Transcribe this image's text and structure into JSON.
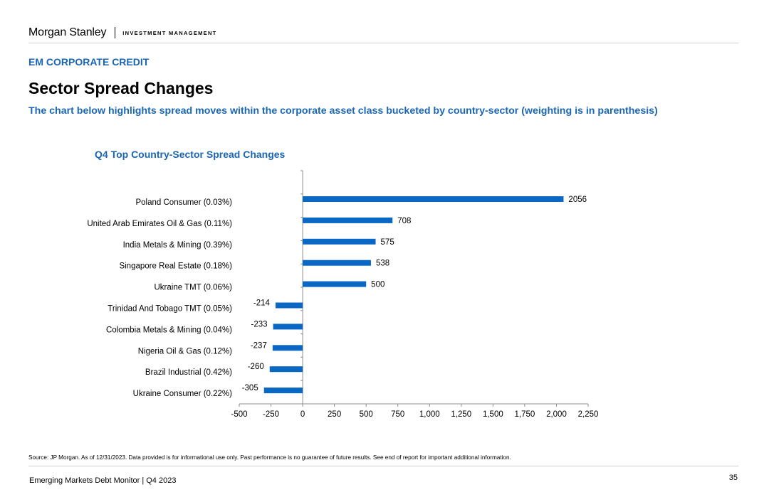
{
  "brand": {
    "logo_text": "Morgan Stanley",
    "division": "INVESTMENT MANAGEMENT"
  },
  "header": {
    "section": "EM CORPORATE CREDIT",
    "title": "Sector Spread Changes",
    "subtitle": "The chart below highlights spread moves within the corporate asset class bucketed by country-sector (weighting is in parenthesis)"
  },
  "chart_data": {
    "type": "bar",
    "orientation": "horizontal",
    "title": "Q4 Top Country-Sector Spread Changes",
    "categories": [
      "Poland Consumer (0.03%)",
      "United Arab Emirates Oil & Gas (0.11%)",
      "India Metals & Mining (0.39%)",
      "Singapore Real Estate (0.18%)",
      "Ukraine TMT (0.06%)",
      "Trinidad And Tobago TMT (0.05%)",
      "Colombia Metals & Mining (0.04%)",
      "Nigeria Oil & Gas (0.12%)",
      "Brazil Industrial (0.42%)",
      "Ukraine Consumer (0.22%)"
    ],
    "values": [
      2056,
      708,
      575,
      538,
      500,
      -214,
      -233,
      -237,
      -260,
      -305
    ],
    "value_labels": [
      "2056",
      "708",
      "575",
      "538",
      "500",
      "-214",
      "-233",
      "-237",
      "-260",
      "-305"
    ],
    "xlim": [
      -500,
      2250
    ],
    "xticks": [
      -500,
      -250,
      0,
      250,
      500,
      750,
      1000,
      1250,
      1500,
      1750,
      2000,
      2250
    ],
    "xtick_labels": [
      "-500",
      "-250",
      "0",
      "250",
      "500",
      "750",
      "1,000",
      "1,250",
      "1,500",
      "1,750",
      "2,000",
      "2,250"
    ],
    "xlabel": "",
    "ylabel": "",
    "grid": false,
    "bar_color": "#0b67c4"
  },
  "footer": {
    "source": "Source: JP Morgan. As of 12/31/2023. Data provided is for informational use only. Past performance is no guarantee of future results. See end of report for important additional information.",
    "publication": "Emerging Markets Debt Monitor | Q4 2023",
    "page_number": "35"
  }
}
